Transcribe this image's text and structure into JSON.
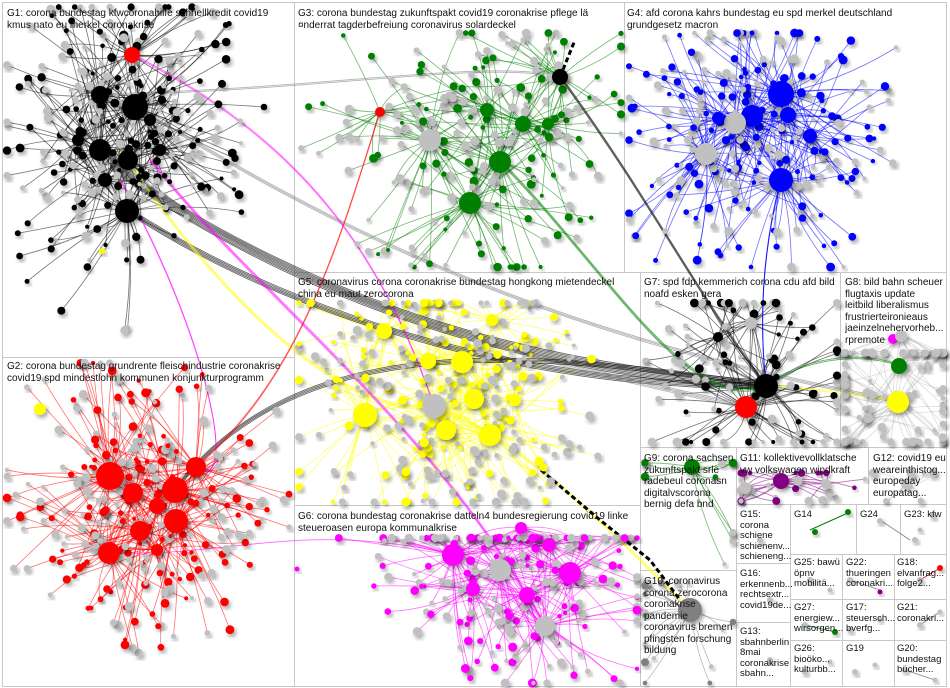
{
  "groups": [
    {
      "id": "G1",
      "label": "G1: corona bundestag kfwcoronahilfe schnellkredit covid19\nkmus nato eu merkel coronakrise",
      "color": "#000000"
    },
    {
      "id": "G2",
      "label": "G2: corona bundestag grundrente fleischindustrie coronakrise\ncovid19 spd mindestlohn kommunen konjunkturprogramm",
      "color": "#ff0000"
    },
    {
      "id": "G3",
      "label": "G3: corona bundestag zukunftspakt covid19 coronakrise pflege lä\n¤nderrat tagderbefreiung coronavirus solardeckel",
      "color": "#008000"
    },
    {
      "id": "G4",
      "label": "G4: afd corona kahrs bundestag eu spd merkel deutschland\ngrundgesetz macron",
      "color": "#0000ff"
    },
    {
      "id": "G5",
      "label": "G5: coronavirus corona coronakrise bundestag hongkong mietendeckel\nchina eu maut zerocorona",
      "color": "#ffff00"
    },
    {
      "id": "G6",
      "label": "G6: corona bundestag coronakrise datteln4 bundesregierung covid19 linke\nsteueroasen europa kommunalkrise",
      "color": "#ff00ff"
    },
    {
      "id": "G7",
      "label": "G7: spd fdp kemmerich corona cdu afd bild\nnoafd esken gera",
      "color": "#000000"
    },
    {
      "id": "G8",
      "label": "G8: bild bahn scheuer\nflugtaxis update\nleitbild liberalismus\nfrustrierteironieaus\njaeinzelnehervorheb...\nrpremote",
      "color": "#c0c0c0"
    },
    {
      "id": "G9",
      "label": "G9: corona sachsen\nzukunftspakt srle\nradebeul coronasn\ndigitalvscorona\nbernig defa bnd",
      "color": "#008000"
    },
    {
      "id": "G10",
      "label": "G10: coronavirus\ncorona zerocorona\ncoronakrise\npandemie\ncoronavirus bremen\npfingsten forschung\nbildung",
      "color": "#808080"
    },
    {
      "id": "G11",
      "label": "G11: kollektivevollklatsche\nvw volkswagen windkraft",
      "color": "#800080"
    },
    {
      "id": "G12",
      "label": "G12: covid19 eu\nweareinthistog...\neuropeday\neuropatag...",
      "color": "#c0c0c0"
    },
    {
      "id": "G13",
      "label": "G13:\nsbahnberlin\n8mai\ncoronakrise\nsbahn...",
      "color": "#c0c0c0"
    },
    {
      "id": "G14",
      "label": "G14",
      "color": "#008000"
    },
    {
      "id": "G15",
      "label": "G15:\ncorona\nschiene\nschienenv...\nschieneng...",
      "color": "#c0c0c0"
    },
    {
      "id": "G16",
      "label": "G16:\nerkennenb...\nrechtsextr...\ncovid19de...",
      "color": "#c0c0c0"
    },
    {
      "id": "G17",
      "label": "G17:\nsteuersch...\nbverfg...",
      "color": "#c0c0c0"
    },
    {
      "id": "G18",
      "label": "G18:\nelvanfrag...\nfolge2...",
      "color": "#c0c0c0"
    },
    {
      "id": "G19",
      "label": "G19",
      "color": "#c0c0c0"
    },
    {
      "id": "G20",
      "label": "G20:\nbundestag\nbücher...",
      "color": "#c0c0c0"
    },
    {
      "id": "G21",
      "label": "G21:\ncoronakri...",
      "color": "#c0c0c0"
    },
    {
      "id": "G22",
      "label": "G22:\nthueringen\ncoronakri...",
      "color": "#c0c0c0"
    },
    {
      "id": "G23",
      "label": "G23: kfw",
      "color": "#c0c0c0"
    },
    {
      "id": "G24",
      "label": "G24",
      "color": "#c0c0c0"
    },
    {
      "id": "G25",
      "label": "G25: bawü\nöpnv\nmobilitä...",
      "color": "#c0c0c0"
    },
    {
      "id": "G26",
      "label": "G26:\nbioöko...\nkulturbb...",
      "color": "#c0c0c0"
    },
    {
      "id": "G27",
      "label": "G27:\nenergiew...\nwirsorgen...",
      "color": "#c0c0c0"
    }
  ]
}
